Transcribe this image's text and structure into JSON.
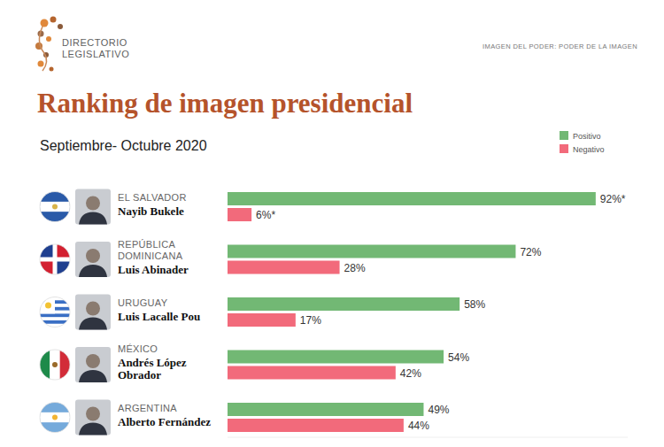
{
  "chart_data": {
    "type": "bar",
    "orientation": "horizontal",
    "logo": "DIRECTORIO LEGISLATIVO",
    "tagline": "IMAGEN DEL PODER: PODER DE LA IMAGEN",
    "title": "Ranking de imagen presidencial",
    "subtitle": "Septiembre- Octubre 2020",
    "categories": [
      "EL SALVADOR",
      "REPÚBLICA DOMINICANA",
      "URUGUAY",
      "MÉXICO",
      "ARGENTINA"
    ],
    "presidents": [
      "Nayib Bukele",
      "Luis Abinader",
      "Luis Lacalle Pou",
      "Andrés López Obrador",
      "Alberto Fernández"
    ],
    "series": [
      {
        "name": "Positivo",
        "color": "#72b874",
        "values": [
          92,
          72,
          58,
          54,
          49
        ],
        "value_labels": [
          "92%*",
          "72%",
          "58%",
          "54%",
          "49%"
        ]
      },
      {
        "name": "Negativo",
        "color": "#f26a7b",
        "values": [
          6,
          28,
          17,
          42,
          44
        ],
        "value_labels": [
          "6%*",
          "28%",
          "17%",
          "42%",
          "44%"
        ]
      }
    ],
    "xlim": [
      0,
      100
    ],
    "tick_labels": false,
    "grid": false,
    "legend": "top-right",
    "data_labels": true
  }
}
